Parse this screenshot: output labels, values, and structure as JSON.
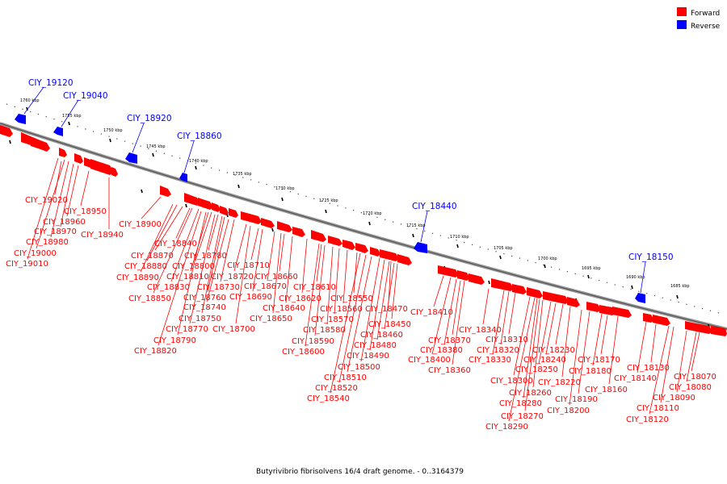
{
  "caption": "Butyrivibrio fibrisolvens 16/4 draft genome. - 0..3164379",
  "legend": [
    {
      "label": "Forward",
      "color": "#ff0000"
    },
    {
      "label": "Reverse",
      "color": "#0000ff"
    }
  ],
  "colors": {
    "forward": "#ff0000",
    "reverse": "#0000ff",
    "backbone": "#888888"
  },
  "scale_labels": [
    "1760 kbp",
    "1755 kbp",
    "1750 kbp",
    "1745 kbp",
    "1740 kbp",
    "1735 kbp",
    "1730 kbp",
    "1725 kbp",
    "1720 kbp",
    "1715 kbp",
    "1710 kbp",
    "1705 kbp",
    "1700 kbp",
    "1695 kbp",
    "1690 kbp",
    "1685 kbp"
  ],
  "reverse_labels": [
    "CIY_19120",
    "CIY_19040",
    "CIY_18920",
    "CIY_18860",
    "CIY_18440",
    "CIY_18150"
  ],
  "forward_labels": [
    "CIY_19020",
    "CIY_18950",
    "CIY_18960",
    "CIY_18970",
    "CIY_18940",
    "CIY_18980",
    "CIY_19000",
    "CIY_19010",
    "CIY_18900",
    "CIY_18840",
    "CIY_18870",
    "CIY_18780",
    "CIY_18880",
    "CIY_18800",
    "CIY_18710",
    "CIY_18890",
    "CIY_18810",
    "CIY_18720",
    "CIY_18660",
    "CIY_18830",
    "CIY_18730",
    "CIY_18670",
    "CIY_18610",
    "CIY_18850",
    "CIY_18760",
    "CIY_18690",
    "CIY_18620",
    "CIY_18550",
    "CIY_18740",
    "CIY_18640",
    "CIY_18560",
    "CIY_18470",
    "CIY_18750",
    "CIY_18650",
    "CIY_18570",
    "CIY_18770",
    "CIY_18700",
    "CIY_18580",
    "CIY_18450",
    "CIY_18790",
    "CIY_18460",
    "CIY_18590",
    "CIY_18820",
    "CIY_18480",
    "CIY_18600",
    "CIY_18490",
    "CIY_18500",
    "CIY_18510",
    "CIY_18520",
    "CIY_18540",
    "CIY_18410",
    "CIY_18340",
    "CIY_18370",
    "CIY_18310",
    "CIY_18380",
    "CIY_18320",
    "CIY_18230",
    "CIY_18400",
    "CIY_18330",
    "CIY_18240",
    "CIY_18170",
    "CIY_18360",
    "CIY_18250",
    "CIY_18180",
    "CIY_18130",
    "CIY_18300",
    "CIY_18220",
    "CIY_18160",
    "CIY_18140",
    "CIY_18070",
    "CIY_18260",
    "CIY_18190",
    "CIY_18080",
    "CIY_18280",
    "CIY_18200",
    "CIY_18090",
    "CIY_18270",
    "CIY_18110",
    "CIY_18290",
    "CIY_18120"
  ]
}
